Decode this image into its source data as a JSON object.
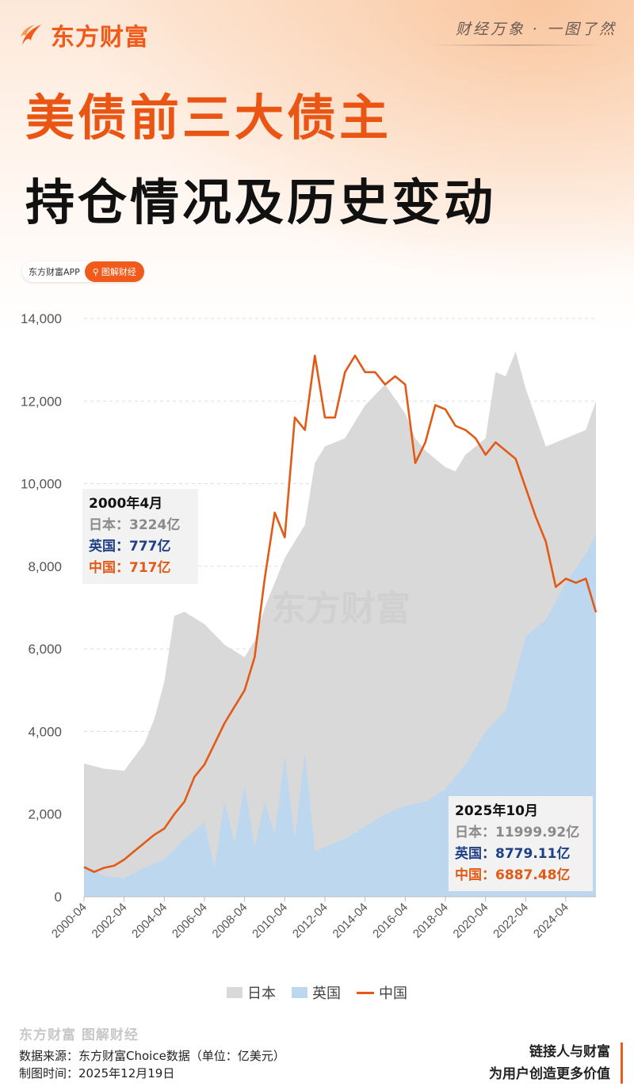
{
  "header": {
    "brand": "东方财富",
    "slogan": "财经万象 · 一图了然",
    "title_line1": "美债前三大债主",
    "title_line2": "持仓情况及历史变动",
    "app_label": "东方财富APP",
    "app_button": "图解财经"
  },
  "colors": {
    "accent": "#f05a1a",
    "japan_area": "#d9d9d9",
    "uk_area": "#bcd7ee",
    "china_line": "#e25a16"
  },
  "watermark": "东方财富",
  "chart_data": {
    "type": "area",
    "title": "",
    "xlabel": "",
    "ylabel": "",
    "ylim": [
      0,
      14000
    ],
    "yticks": [
      "0",
      "2,000",
      "4,000",
      "6,000",
      "8,000",
      "10,000",
      "12,000",
      "14,000"
    ],
    "yticks_values": [
      0,
      2000,
      4000,
      6000,
      8000,
      10000,
      12000,
      14000
    ],
    "xticks": [
      "2000-04",
      "2002-04",
      "2004-04",
      "2006-04",
      "2008-04",
      "2010-04",
      "2012-04",
      "2014-04",
      "2016-04",
      "2018-04",
      "2020-04",
      "2022-04",
      "2024-04"
    ],
    "x_range": [
      "2000-04",
      "2025-10"
    ],
    "grid": "horizontal dashed",
    "legend_position": "bottom",
    "series": [
      {
        "name": "日本",
        "kind": "area",
        "color": "#d9d9d9",
        "x": [
          "2000-04",
          "2001-04",
          "2002-04",
          "2003-04",
          "2003-10",
          "2004-04",
          "2004-10",
          "2005-04",
          "2006-04",
          "2007-04",
          "2008-04",
          "2008-10",
          "2009-04",
          "2010-04",
          "2011-04",
          "2011-10",
          "2012-04",
          "2013-04",
          "2014-04",
          "2015-04",
          "2016-04",
          "2016-10",
          "2017-04",
          "2018-04",
          "2018-10",
          "2019-04",
          "2020-04",
          "2020-10",
          "2021-04",
          "2021-10",
          "2022-04",
          "2023-04",
          "2024-04",
          "2025-04",
          "2025-10"
        ],
        "values": [
          3224,
          3100,
          3050,
          3700,
          4300,
          5200,
          6800,
          6900,
          6600,
          6100,
          5800,
          6200,
          7000,
          8200,
          9000,
          10500,
          10900,
          11100,
          11900,
          12400,
          11700,
          11100,
          10800,
          10400,
          10300,
          10700,
          11100,
          12700,
          12600,
          13200,
          12300,
          10900,
          11100,
          11300,
          11999.92
        ]
      },
      {
        "name": "英国",
        "kind": "area",
        "color": "#bcd7ee",
        "x": [
          "2000-04",
          "2001-04",
          "2002-04",
          "2003-04",
          "2004-04",
          "2005-04",
          "2006-04",
          "2006-10",
          "2007-04",
          "2007-10",
          "2008-04",
          "2008-10",
          "2009-04",
          "2009-10",
          "2010-04",
          "2010-10",
          "2011-04",
          "2011-10",
          "2012-04",
          "2013-04",
          "2014-04",
          "2015-04",
          "2016-04",
          "2017-04",
          "2018-04",
          "2019-04",
          "2020-04",
          "2021-04",
          "2022-04",
          "2023-04",
          "2024-04",
          "2025-04",
          "2025-10"
        ],
        "values": [
          777,
          500,
          450,
          700,
          900,
          1400,
          1800,
          700,
          2300,
          1300,
          2700,
          1200,
          2300,
          1500,
          3400,
          1400,
          3500,
          1100,
          1200,
          1400,
          1700,
          2000,
          2200,
          2300,
          2600,
          3200,
          4000,
          4500,
          6300,
          6700,
          7600,
          8300,
          8779.11
        ]
      },
      {
        "name": "中国",
        "kind": "line",
        "color": "#e25a16",
        "x": [
          "2000-04",
          "2000-10",
          "2001-04",
          "2001-10",
          "2002-04",
          "2002-10",
          "2003-04",
          "2003-10",
          "2004-04",
          "2004-10",
          "2005-04",
          "2005-10",
          "2006-04",
          "2006-10",
          "2007-04",
          "2007-10",
          "2008-04",
          "2008-10",
          "2009-04",
          "2009-10",
          "2010-04",
          "2010-10",
          "2011-04",
          "2011-10",
          "2012-04",
          "2012-10",
          "2013-04",
          "2013-10",
          "2014-04",
          "2014-10",
          "2015-04",
          "2015-10",
          "2016-04",
          "2016-10",
          "2017-04",
          "2017-10",
          "2018-04",
          "2018-10",
          "2019-04",
          "2019-10",
          "2020-04",
          "2020-10",
          "2021-04",
          "2021-10",
          "2022-04",
          "2022-10",
          "2023-04",
          "2023-10",
          "2024-04",
          "2024-10",
          "2025-04",
          "2025-10"
        ],
        "values": [
          717,
          600,
          700,
          750,
          900,
          1100,
          1300,
          1500,
          1650,
          2000,
          2300,
          2900,
          3200,
          3700,
          4200,
          4600,
          5000,
          5800,
          7700,
          9300,
          8700,
          11600,
          11300,
          13100,
          11600,
          11600,
          12700,
          13100,
          12700,
          12700,
          12400,
          12600,
          12400,
          10500,
          11000,
          11900,
          11800,
          11400,
          11300,
          11100,
          10700,
          11000,
          10800,
          10600,
          9900,
          9200,
          8600,
          7500,
          7700,
          7600,
          7700,
          6887.48
        ]
      }
    ],
    "annotations": [
      {
        "position": "left",
        "date": "2000年4月",
        "japan": "日本：3224亿",
        "uk": "英国：777亿",
        "china": "中国：717亿"
      },
      {
        "position": "right",
        "date": "2025年10月",
        "japan": "日本：11999.92亿",
        "uk": "英国：8779.11亿",
        "china": "中国：6887.48亿"
      }
    ]
  },
  "footer": {
    "logo": "东方财富 图解财经",
    "source": "数据来源：东方财富Choice数据（单位：亿美元）",
    "date": "制图时间：2025年12月19日",
    "tagline1": "链接人与财富",
    "tagline2": "为用户创造更多价值"
  }
}
